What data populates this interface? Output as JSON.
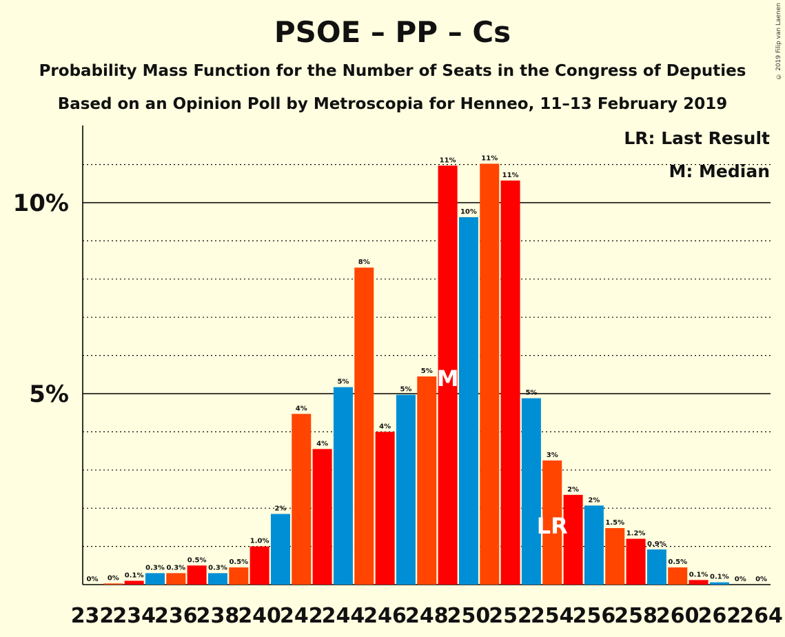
{
  "title": "PSOE – PP – Cs",
  "subtitle_1": "Probability Mass Function for the Number of Seats in the Congress of Deputies",
  "subtitle_2": "Based on an Opinion Poll by Metroscopia for Henneo, 11–13 February 2019",
  "copyright": "© 2019 Filip van Laenen",
  "legend": {
    "last_result": "LR: Last Result",
    "median": "M: Median"
  },
  "colors": {
    "background": "#FFFEE0",
    "psoe_red": "#FF0000",
    "orange": "#FF4500",
    "blue": "#008FD5"
  },
  "chart_data": {
    "type": "bar",
    "title": "PSOE – PP – Cs",
    "xlabel": "",
    "ylabel": "",
    "ylim": [
      0,
      12
    ],
    "y_ticks": [
      5,
      10
    ],
    "y_tick_labels": [
      "5%",
      "10%"
    ],
    "grid": "dotted every 1%, solid at 5% and 10%",
    "x_tick_labels": [
      "232",
      "234",
      "236",
      "238",
      "240",
      "242",
      "244",
      "246",
      "248",
      "250",
      "252",
      "254",
      "256",
      "258",
      "260",
      "262",
      "264"
    ],
    "categories": [
      232,
      233,
      234,
      235,
      236,
      237,
      238,
      239,
      240,
      241,
      242,
      243,
      244,
      245,
      246,
      247,
      248,
      249,
      250,
      251,
      252,
      253,
      254,
      255,
      256,
      257,
      258,
      259,
      260,
      261,
      262,
      263,
      264
    ],
    "values": [
      0,
      0.03,
      0.1,
      0.3,
      0.3,
      0.5,
      0.3,
      0.45,
      1.0,
      1.85,
      4.47,
      3.55,
      5.17,
      8.3,
      4.0,
      4.97,
      5.45,
      10.97,
      9.62,
      11.02,
      10.58,
      4.88,
      3.25,
      2.35,
      2.07,
      1.48,
      1.2,
      0.92,
      0.45,
      0.12,
      0.06,
      0,
      0
    ],
    "value_labels": [
      "0%",
      "0%",
      "0.1%",
      "0.3%",
      "0.3%",
      "0.5%",
      "0.3%",
      "0.5%",
      "1.0%",
      "2%",
      "4%",
      "4%",
      "5%",
      "8%",
      "4%",
      "5%",
      "5%",
      "11%",
      "10%",
      "11%",
      "11%",
      "5%",
      "3%",
      "2%",
      "2%",
      "1.5%",
      "1.2%",
      "0.9%",
      "0.5%",
      "0.1%",
      "0.1%",
      "0%",
      "0%"
    ],
    "bar_colors": [
      "#FF4500",
      "#FF4500",
      "#FF0000",
      "#008FD5",
      "#FF4500",
      "#FF0000",
      "#008FD5",
      "#FF4500",
      "#FF0000",
      "#008FD5",
      "#FF4500",
      "#FF0000",
      "#008FD5",
      "#FF4500",
      "#FF0000",
      "#008FD5",
      "#FF4500",
      "#FF0000",
      "#008FD5",
      "#FF4500",
      "#FF0000",
      "#008FD5",
      "#FF4500",
      "#FF0000",
      "#008FD5",
      "#FF4500",
      "#FF0000",
      "#008FD5",
      "#FF4500",
      "#FF0000",
      "#008FD5",
      "#FF4500",
      "#FF0000"
    ],
    "median_seat": 249,
    "median_marker": "M",
    "last_result_seat": 254,
    "last_result_marker": "LR"
  }
}
